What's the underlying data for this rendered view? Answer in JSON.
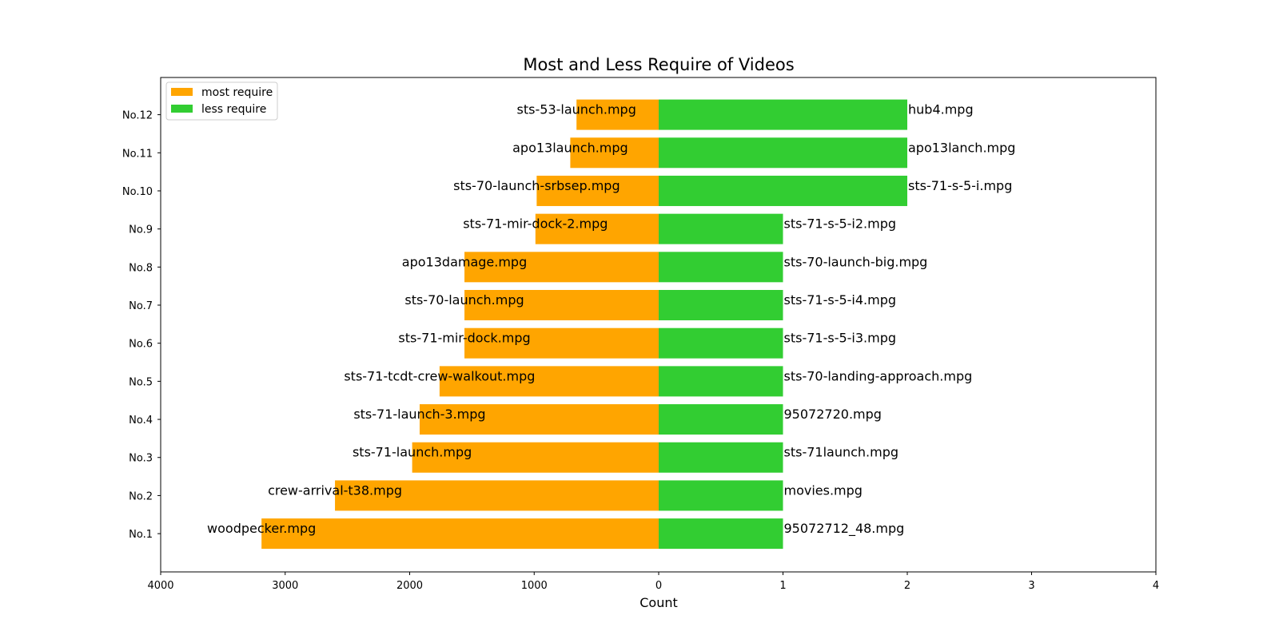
{
  "chart_data": {
    "type": "bar",
    "orientation": "horizontal",
    "title": "Most and Less Require of Videos",
    "xlabel": "Count",
    "ylabel": "",
    "categories": [
      "No.1",
      "No.2",
      "No.3",
      "No.4",
      "No.5",
      "No.6",
      "No.7",
      "No.8",
      "No.9",
      "No.10",
      "No.11",
      "No.12"
    ],
    "left_axis": {
      "ticks": [
        4000,
        3000,
        2000,
        1000,
        0
      ],
      "tick_labels": [
        "4000",
        "3000",
        "2000",
        "1000",
        "0"
      ],
      "range": [
        0,
        4000
      ]
    },
    "right_axis": {
      "ticks": [
        1,
        2,
        3,
        4
      ],
      "tick_labels": [
        "1",
        "2",
        "3",
        "4"
      ],
      "range": [
        0,
        4
      ]
    },
    "series": [
      {
        "name": "most require",
        "side": "left",
        "color": "#ffa500",
        "values": [
          3190,
          2600,
          1980,
          1920,
          1760,
          1560,
          1560,
          1560,
          990,
          980,
          710,
          660
        ],
        "labels": [
          "woodpecker.mpg",
          "crew-arrival-t38.mpg",
          "sts-71-launch.mpg",
          "sts-71-launch-3.mpg",
          "sts-71-tcdt-crew-walkout.mpg",
          "sts-71-mir-dock.mpg",
          "sts-70-launch.mpg",
          "apo13damage.mpg",
          "sts-71-mir-dock-2.mpg",
          "sts-70-launch-srbsep.mpg",
          "apo13launch.mpg",
          "sts-53-launch.mpg"
        ]
      },
      {
        "name": "less require",
        "side": "right",
        "color": "#32cd32",
        "values": [
          1,
          1,
          1,
          1,
          1,
          1,
          1,
          1,
          1,
          2,
          2,
          2
        ],
        "labels": [
          "95072712_48.mpg",
          "movies.mpg",
          "sts-71launch.mpg",
          "95072720.mpg",
          "sts-70-landing-approach.mpg",
          "sts-71-s-5-i3.mpg",
          "sts-71-s-5-i4.mpg",
          "sts-70-launch-big.mpg",
          "sts-71-s-5-i2.mpg",
          "sts-71-s-5-i.mpg",
          "apo13lanch.mpg",
          "hub4.mpg"
        ]
      }
    ],
    "legend": {
      "position": "top-left",
      "entries": [
        "most require",
        "less require"
      ]
    },
    "grid": false
  }
}
